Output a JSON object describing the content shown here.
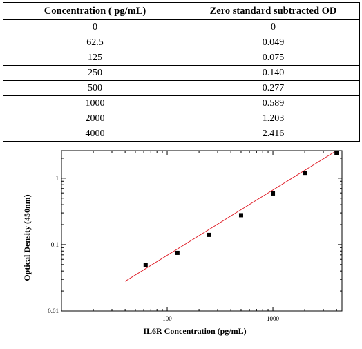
{
  "table": {
    "headers": [
      "Concentration ( pg/mL)",
      "Zero standard subtracted OD"
    ],
    "rows": [
      [
        "0",
        "0"
      ],
      [
        "62.5",
        "0.049"
      ],
      [
        "125",
        "0.075"
      ],
      [
        "250",
        "0.140"
      ],
      [
        "500",
        "0.277"
      ],
      [
        "1000",
        "0.589"
      ],
      [
        "2000",
        "1.203"
      ],
      [
        "4000",
        "2.416"
      ]
    ]
  },
  "chart_data": {
    "type": "scatter",
    "xlabel": "IL6R Concentration (pg/mL)",
    "ylabel": "Optical Density (450nm)",
    "x_scale": "log",
    "y_scale": "log",
    "xlim": [
      10,
      4500
    ],
    "ylim": [
      0.01,
      2.6
    ],
    "x_tick_labels": [
      "100",
      "1000"
    ],
    "y_tick_labels": [
      "0.01",
      "0.1",
      "1"
    ],
    "grid": false,
    "legend": "none",
    "marker_color": "#000000",
    "fit_line_color": "#e0202a",
    "x": [
      62.5,
      125,
      250,
      500,
      1000,
      2000,
      4000
    ],
    "y": [
      0.049,
      0.075,
      0.14,
      0.277,
      0.589,
      1.203,
      2.416
    ],
    "fit_line": {
      "x": [
        40,
        4000
      ],
      "y": [
        0.028,
        2.6
      ]
    }
  }
}
